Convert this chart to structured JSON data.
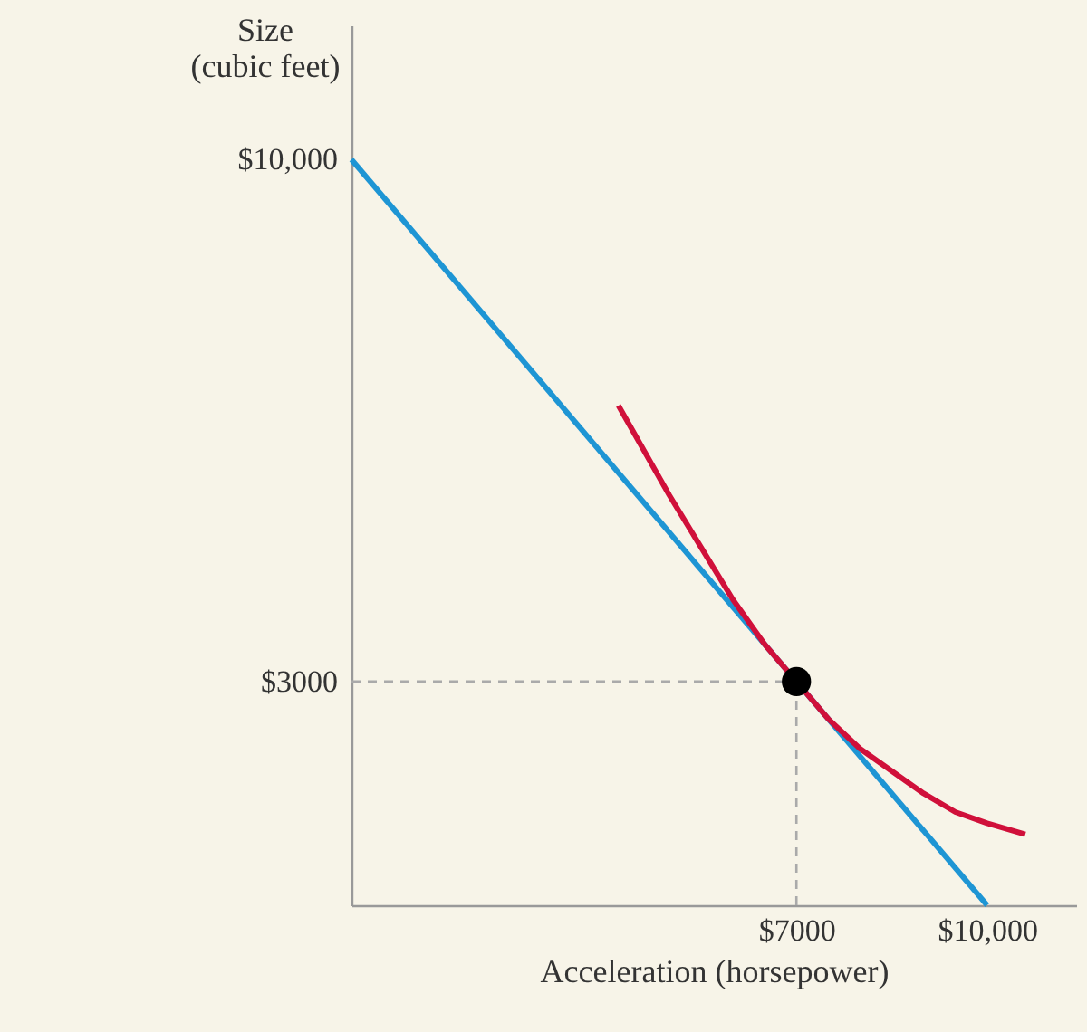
{
  "chart_data": {
    "type": "line",
    "xlabel": "Acceleration (horsepower)",
    "ylabel": "Size\n(cubic feet)",
    "xlim": [
      0,
      11400
    ],
    "ylim": [
      0,
      11800
    ],
    "xticks": [
      {
        "value": 7000,
        "label": "$7000"
      },
      {
        "value": 10000,
        "label": "$10,000"
      }
    ],
    "yticks": [
      {
        "value": 3000,
        "label": "$3000"
      },
      {
        "value": 10000,
        "label": "$10,000"
      }
    ],
    "grid": false,
    "series": [
      {
        "color": "#aaaaaa",
        "line_style": "dashed",
        "x": [
          7000,
          7000
        ],
        "values": [
          0,
          3000
        ]
      },
      {
        "color": "#aaaaaa",
        "line_style": "dashed",
        "x": [
          0,
          7000
        ],
        "values": [
          3000,
          3000
        ]
      },
      {
        "color": "#1e95d4",
        "x": [
          0,
          10000
        ],
        "values": [
          10000,
          0
        ]
      },
      {
        "color": "#d0103a",
        "x": [
          4200,
          4600,
          5000,
          5500,
          6000,
          6500,
          7500,
          8000,
          8500,
          9000,
          9500,
          10000,
          10600
        ],
        "values": [
          6700,
          6100,
          5500,
          4800,
          4100,
          3500,
          2500,
          2100,
          1800,
          1500,
          1250,
          1100,
          950
        ]
      },
      {
        "type": "scatter",
        "color": "#000000",
        "marker": "circle",
        "x": [
          7000
        ],
        "values": [
          3000
        ]
      }
    ]
  }
}
